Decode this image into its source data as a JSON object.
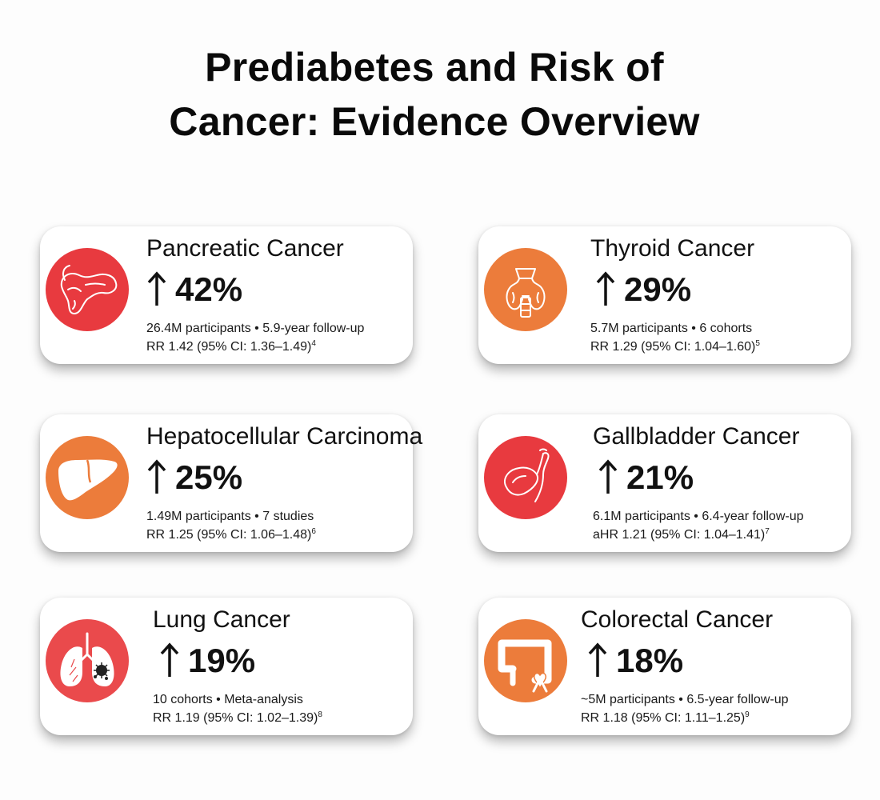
{
  "title": {
    "line1": "Prediabetes and Risk of",
    "line2": "Cancer: Evidence Overview"
  },
  "cards": [
    {
      "name": "Pancreatic Cancer",
      "percent": "42%",
      "detail": "26.4M participants • 5.9-year follow-up",
      "stat": "RR 1.42 (95% CI: 1.36–1.49)",
      "ref": "4",
      "icon": "pancreas-icon",
      "color": "#e83a3f"
    },
    {
      "name": "Thyroid Cancer",
      "percent": "29%",
      "detail": "5.7M participants • 6 cohorts",
      "stat": "RR 1.29 (95% CI: 1.04–1.60)",
      "ref": "5",
      "icon": "thyroid-icon",
      "color": "#ec7c3b"
    },
    {
      "name": "Hepatocellular Carcinoma",
      "percent": "25%",
      "detail": "1.49M participants • 7 studies",
      "stat": "RR 1.25 (95% CI: 1.06–1.48)",
      "ref": "6",
      "icon": "liver-icon",
      "color": "#ec7c3b"
    },
    {
      "name": "Gallbladder Cancer",
      "percent": "21%",
      "detail": "6.1M participants • 6.4-year follow-up",
      "stat": "aHR 1.21 (95% CI: 1.04–1.41)",
      "ref": "7",
      "icon": "gallbladder-icon",
      "color": "#e83a3f"
    },
    {
      "name": "Lung Cancer",
      "percent": "19%",
      "detail": "10 cohorts • Meta-analysis",
      "stat": "RR 1.19 (95% CI: 1.02–1.39)",
      "ref": "8",
      "icon": "lungs-icon",
      "color": "#e83a3f"
    },
    {
      "name": "Colorectal Cancer",
      "percent": "18%",
      "detail": "~5M participants • 6.5-year follow-up",
      "stat": "RR 1.18 (95% CI: 1.11–1.25)",
      "ref": "9",
      "icon": "colon-ribbon-icon",
      "color": "#ec7c3b"
    }
  ]
}
